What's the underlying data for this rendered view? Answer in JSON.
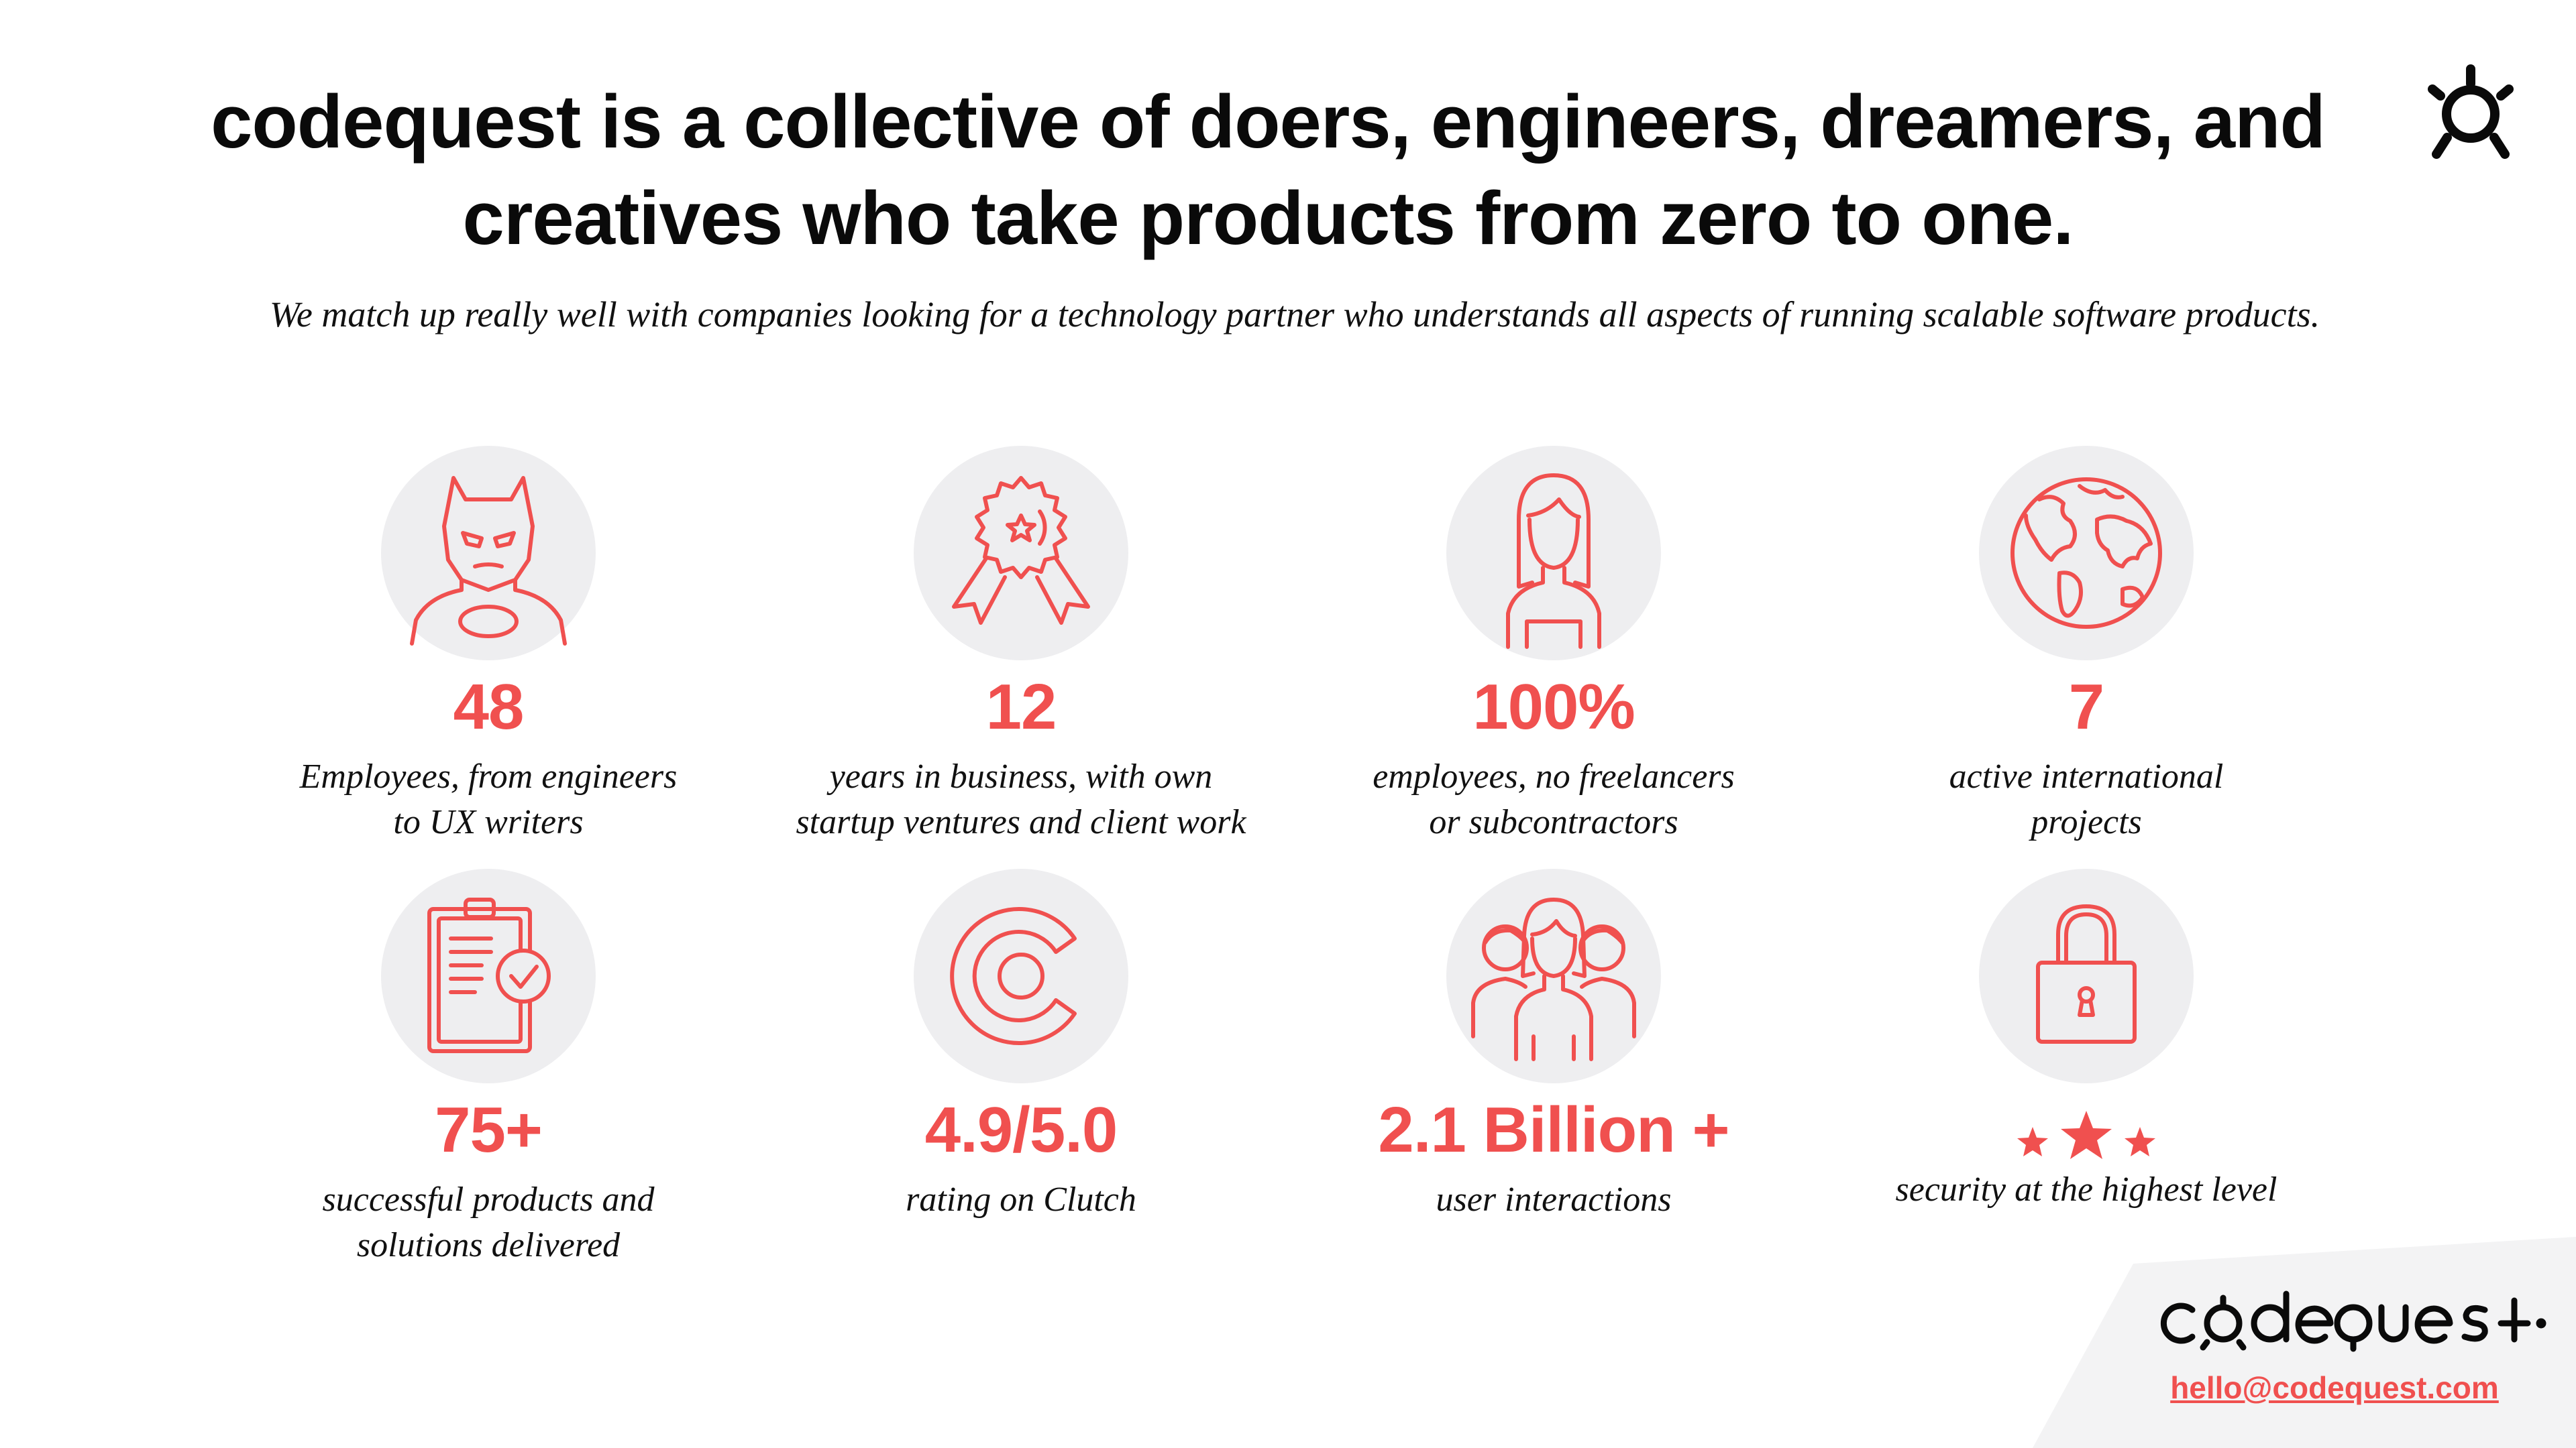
{
  "header": {
    "headline": "codequest is a collective of doers, engineers, dreamers, and creatives who take products from zero to one.",
    "subtitle": "We match up really well with companies looking for a technology partner who understands all aspects of running scalable software products."
  },
  "colors": {
    "accent": "#f0504f",
    "circle_bg": "#eeeef0",
    "text": "#0a0a0a",
    "footer_panel": "#f3f3f4"
  },
  "stats": [
    {
      "icon": "superhero-mask-icon",
      "value": "48",
      "label": "Employees, from engineers\nto UX writers"
    },
    {
      "icon": "award-ribbon-icon",
      "value": "12",
      "label": "years in business, with own\nstartup ventures and client work"
    },
    {
      "icon": "woman-avatar-icon",
      "value": "100%",
      "label": "employees, no freelancers\nor subcontractors"
    },
    {
      "icon": "globe-icon",
      "value": "7",
      "label": "active international\nprojects"
    },
    {
      "icon": "clipboard-check-icon",
      "value": "75+",
      "label": "successful products and\nsolutions delivered"
    },
    {
      "icon": "clutch-logo-icon",
      "value": "4.9/5.0",
      "label": "rating on Clutch"
    },
    {
      "icon": "group-people-icon",
      "value": "2.1 Billion +",
      "label": "user interactions"
    },
    {
      "icon": "padlock-icon",
      "value": "",
      "value_icon": "three-stars-icon",
      "label": "security at the highest level"
    }
  ],
  "footer": {
    "brand": "codequest",
    "email": "hello@codequest.com"
  }
}
